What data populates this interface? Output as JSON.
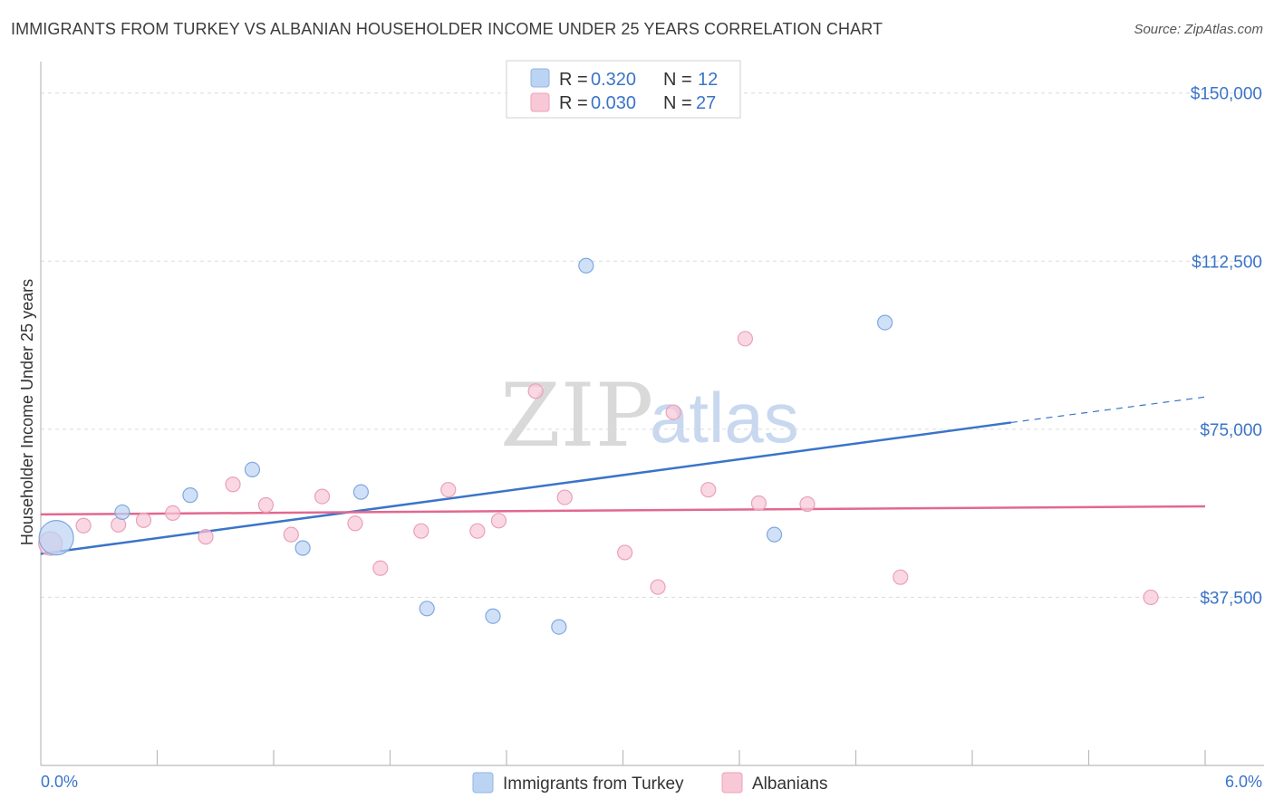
{
  "title": "IMMIGRANTS FROM TURKEY VS ALBANIAN HOUSEHOLDER INCOME UNDER 25 YEARS CORRELATION CHART",
  "source": "Source: ZipAtlas.com",
  "colors": {
    "turkey": "#3a74c9",
    "turkey_fill": "#bcd4f3",
    "albanians": "#e2688f",
    "albanians_fill": "#f8c8d7",
    "axis_label": "#3a74c9",
    "grid": "#d8d8d8"
  },
  "legend": {
    "rows": [
      {
        "r_label": "R =",
        "r_value": "0.320",
        "n_label": "N =",
        "n_value": "12"
      },
      {
        "r_label": "R =",
        "r_value": "0.030",
        "n_label": "N =",
        "n_value": "27"
      }
    ]
  },
  "watermark": {
    "zip": "ZIP",
    "atlas": "atlas"
  },
  "chart_data": {
    "type": "scatter",
    "title": "IMMIGRANTS FROM TURKEY VS ALBANIAN HOUSEHOLDER INCOME UNDER 25 YEARS CORRELATION CHART",
    "xlabel": "",
    "ylabel": "Householder Income Under 25 years",
    "xlim": [
      0,
      6
    ],
    "ylim": [
      0,
      155000
    ],
    "x_tick_labels": [
      "0.0%",
      "6.0%"
    ],
    "y_ticks": [
      37500,
      75000,
      112500,
      150000
    ],
    "y_tick_labels": [
      "$37,500",
      "$75,000",
      "$112,500",
      "$150,000"
    ],
    "grid": true,
    "legend_position": "top-center",
    "series": [
      {
        "name": "Immigrants from Turkey",
        "color": "#3a74c9",
        "points": [
          {
            "x": 0.08,
            "y": 50800,
            "size": "large"
          },
          {
            "x": 0.42,
            "y": 56500
          },
          {
            "x": 0.77,
            "y": 60300
          },
          {
            "x": 1.09,
            "y": 66000
          },
          {
            "x": 1.35,
            "y": 48500
          },
          {
            "x": 1.65,
            "y": 61000
          },
          {
            "x": 1.99,
            "y": 35000
          },
          {
            "x": 2.33,
            "y": 33300
          },
          {
            "x": 2.67,
            "y": 30900
          },
          {
            "x": 2.81,
            "y": 111500
          },
          {
            "x": 3.78,
            "y": 51500
          },
          {
            "x": 4.35,
            "y": 98800
          }
        ],
        "trend": {
          "x0": 0.0,
          "y0": 47200,
          "x1": 5.0,
          "y1": 76500,
          "dash_to_x": 6.0,
          "dash_to_y": 82200
        }
      },
      {
        "name": "Albanians",
        "color": "#e2688f",
        "points": [
          {
            "x": 0.05,
            "y": 49500,
            "size": "medium"
          },
          {
            "x": 0.22,
            "y": 53500
          },
          {
            "x": 0.4,
            "y": 53700
          },
          {
            "x": 0.53,
            "y": 54700
          },
          {
            "x": 0.68,
            "y": 56300
          },
          {
            "x": 0.85,
            "y": 51000
          },
          {
            "x": 0.99,
            "y": 62700
          },
          {
            "x": 1.16,
            "y": 58100
          },
          {
            "x": 1.29,
            "y": 51500
          },
          {
            "x": 1.45,
            "y": 60000
          },
          {
            "x": 1.62,
            "y": 54000
          },
          {
            "x": 1.75,
            "y": 44000
          },
          {
            "x": 1.96,
            "y": 52300
          },
          {
            "x": 2.1,
            "y": 61500
          },
          {
            "x": 2.25,
            "y": 52300
          },
          {
            "x": 2.36,
            "y": 54600
          },
          {
            "x": 2.55,
            "y": 83500
          },
          {
            "x": 2.7,
            "y": 59800
          },
          {
            "x": 3.01,
            "y": 47500
          },
          {
            "x": 3.18,
            "y": 39800
          },
          {
            "x": 3.26,
            "y": 78800
          },
          {
            "x": 3.44,
            "y": 61500
          },
          {
            "x": 3.63,
            "y": 95200
          },
          {
            "x": 3.7,
            "y": 58500
          },
          {
            "x": 3.95,
            "y": 58300
          },
          {
            "x": 4.43,
            "y": 42000
          },
          {
            "x": 5.72,
            "y": 37500
          }
        ],
        "trend": {
          "x0": 0.0,
          "y0": 56000,
          "x1": 6.0,
          "y1": 57800
        }
      }
    ]
  }
}
